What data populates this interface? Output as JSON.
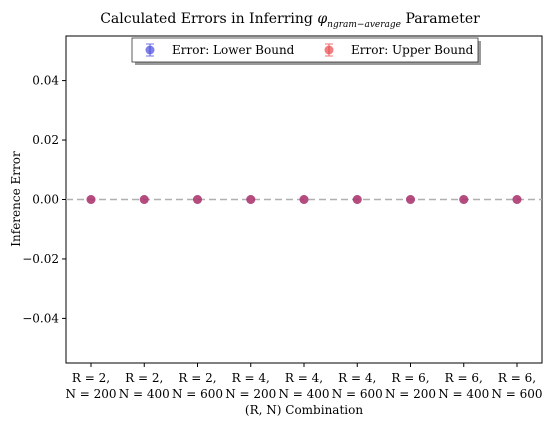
{
  "chart_data": {
    "type": "scatter",
    "title_prefix": "Calculated Errors in Inferring ",
    "title_symbol": "φ",
    "title_subscript": "ngram−average",
    "title_suffix": " Parameter",
    "xlabel": "(R, N) Combination",
    "ylabel": "Inference Error",
    "categories": [
      [
        "R = 2,",
        "N = 200"
      ],
      [
        "R = 2,",
        "N = 400"
      ],
      [
        "R = 2,",
        "N = 600"
      ],
      [
        "R = 4,",
        "N = 200"
      ],
      [
        "R = 4,",
        "N = 400"
      ],
      [
        "R = 4,",
        "N = 600"
      ],
      [
        "R = 6,",
        "N = 200"
      ],
      [
        "R = 6,",
        "N = 400"
      ],
      [
        "R = 6,",
        "N = 600"
      ]
    ],
    "yticks": [
      -0.04,
      -0.02,
      0.0,
      0.02,
      0.04
    ],
    "ytick_labels": [
      "−0.04",
      "−0.02",
      "0.00",
      "0.02",
      "0.04"
    ],
    "ylim": [
      -0.055,
      0.055
    ],
    "reference_line_y": 0,
    "grid": false,
    "legend_position": "top-center",
    "series": [
      {
        "name": "Error: Lower Bound",
        "color": "#3b3bdb",
        "values": [
          0,
          0,
          0,
          0,
          0,
          0,
          0,
          0,
          0
        ]
      },
      {
        "name": "Error: Upper Bound",
        "color": "#e8373a",
        "values": [
          0,
          0,
          0,
          0,
          0,
          0,
          0,
          0,
          0
        ]
      }
    ]
  }
}
